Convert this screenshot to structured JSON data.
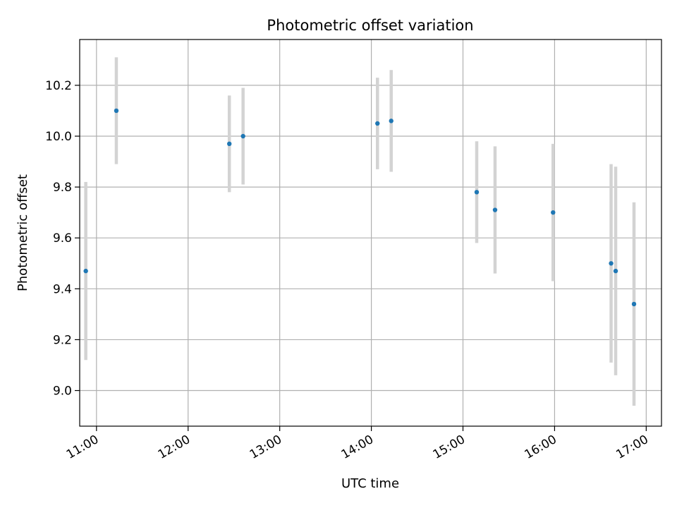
{
  "chart_data": {
    "type": "scatter",
    "title": "Photometric offset variation",
    "xlabel": "UTC time",
    "ylabel": "Photometric offset",
    "xlim": [
      "10:49",
      "17:10"
    ],
    "ylim": [
      8.86,
      10.38
    ],
    "grid": true,
    "legend": "none",
    "x_ticks": [
      "11:00",
      "12:00",
      "13:00",
      "14:00",
      "15:00",
      "16:00",
      "17:00"
    ],
    "y_ticks": [
      "9.0",
      "9.2",
      "9.4",
      "9.6",
      "9.8",
      "10.0",
      "10.2"
    ],
    "series": [
      {
        "marker_color": "#1f77b4",
        "errorbar_color": "#d3d3d3",
        "points": [
          {
            "x": "10:53",
            "y": 9.47,
            "err": 0.35
          },
          {
            "x": "11:13",
            "y": 10.1,
            "err": 0.21
          },
          {
            "x": "12:27",
            "y": 9.97,
            "err": 0.19
          },
          {
            "x": "12:36",
            "y": 10.0,
            "err": 0.19
          },
          {
            "x": "14:04",
            "y": 10.05,
            "err": 0.18
          },
          {
            "x": "14:13",
            "y": 10.06,
            "err": 0.2
          },
          {
            "x": "15:09",
            "y": 9.78,
            "err": 0.2
          },
          {
            "x": "15:21",
            "y": 9.71,
            "err": 0.25
          },
          {
            "x": "15:59",
            "y": 9.7,
            "err": 0.27
          },
          {
            "x": "16:37",
            "y": 9.5,
            "err": 0.39
          },
          {
            "x": "16:40",
            "y": 9.47,
            "err": 0.41
          },
          {
            "x": "16:52",
            "y": 9.34,
            "err": 0.4
          }
        ]
      }
    ]
  }
}
